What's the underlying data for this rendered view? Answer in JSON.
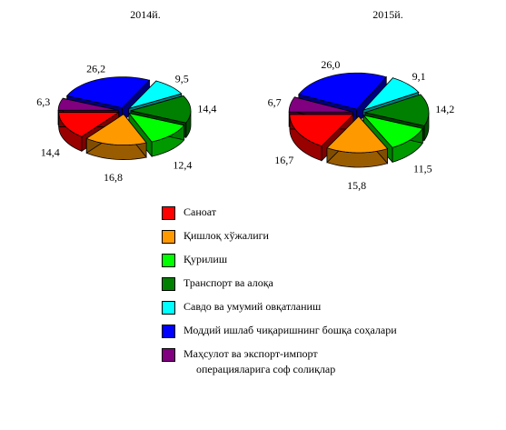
{
  "chart_data": [
    {
      "type": "pie",
      "title": "2014й.",
      "slices": [
        {
          "name": "Саноат",
          "value": 14.4,
          "color": "#ff0000",
          "label": "14,4"
        },
        {
          "name": "Қишлоқ хўжалиги",
          "value": 16.8,
          "color": "#ff9900",
          "label": "16,8"
        },
        {
          "name": "Қурилиш",
          "value": 12.4,
          "color": "#00ff00",
          "label": "12,4"
        },
        {
          "name": "Транспорт ва алоқа",
          "value": 14.4,
          "color": "#008000",
          "label": "14,4"
        },
        {
          "name": "Савдо ва умумий овқатланиш",
          "value": 9.5,
          "color": "#00ffff",
          "label": "9,5"
        },
        {
          "name": "Моддий ишлаб чиқаришнинг бошқа соҳалари",
          "value": 26.2,
          "color": "#0000ff",
          "label": "26,2"
        },
        {
          "name": "Маҳсулот ва экспорт-импорт операцияларига соф солиқлар",
          "value": 6.3,
          "color": "#800080",
          "label": "6,3"
        }
      ]
    },
    {
      "type": "pie",
      "title": "2015й.",
      "slices": [
        {
          "name": "Саноат",
          "value": 16.7,
          "color": "#ff0000",
          "label": "16,7"
        },
        {
          "name": "Қишлоқ хўжалиги",
          "value": 15.8,
          "color": "#ff9900",
          "label": "15,8"
        },
        {
          "name": "Қурилиш",
          "value": 11.5,
          "color": "#00ff00",
          "label": "11,5"
        },
        {
          "name": "Транспорт ва алоқа",
          "value": 14.2,
          "color": "#008000",
          "label": "14,2"
        },
        {
          "name": "Савдо ва умумий овқатланиш",
          "value": 9.1,
          "color": "#00ffff",
          "label": "9,1"
        },
        {
          "name": "Моддий ишлаб чиқаришнинг бошқа соҳалари",
          "value": 26.0,
          "color": "#0000ff",
          "label": "26,0"
        },
        {
          "name": "Маҳсулот ва экспорт-импорт операцияларига соф солиқлар",
          "value": 6.7,
          "color": "#800080",
          "label": "6,7"
        }
      ]
    }
  ],
  "legend": {
    "position": "bottom-center",
    "items": [
      {
        "label": "Саноат",
        "color": "#ff0000"
      },
      {
        "label": "Қишлоқ хўжалиги",
        "color": "#ff9900"
      },
      {
        "label": "Қурилиш",
        "color": "#00ff00"
      },
      {
        "label": "Транспорт ва алоқа",
        "color": "#008000"
      },
      {
        "label": "Савдо ва умумий овқатланиш",
        "color": "#00ffff"
      },
      {
        "label": "Моддий ишлаб чиқаришнинг бошқа соҳалари",
        "color": "#0000ff"
      },
      {
        "label_line1": "Маҳсулот ва экспорт-импорт",
        "label_line2": "операцияларига соф солиқлар",
        "color": "#800080"
      }
    ]
  }
}
